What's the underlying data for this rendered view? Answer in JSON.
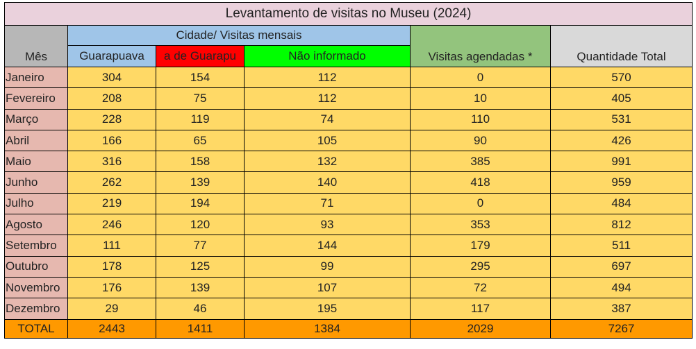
{
  "title": "Levantamento de visitas no Museu (2024)",
  "headers": {
    "mes": "Mês",
    "cidade_group": "Cidade/ Visitas mensais",
    "guarapuava": "Guarapuava",
    "fora": "a de Guarapu",
    "nao_informado": "Não informado",
    "agendadas": "Visitas agendadas *",
    "total": "Quantidade Total"
  },
  "colors": {
    "title_bg": "#ead1dc",
    "month_bg": "#e6b8af",
    "cell_bg": "#ffd966",
    "total_bg": "#ff9900",
    "city_header_bg": "#9fc5e8",
    "outside_header_bg": "#ff0000",
    "not_informed_header_bg": "#00ff00",
    "scheduled_header_bg": "#93c47d",
    "total_header_bg": "#d9d9d9",
    "month_header_bg": "#b7b7b7"
  },
  "rows": [
    {
      "mes": "Janeiro",
      "guarapuava": "304",
      "fora": "154",
      "nao_informado": "112",
      "agendadas": "0",
      "total": "570"
    },
    {
      "mes": "Fevereiro",
      "guarapuava": "208",
      "fora": "75",
      "nao_informado": "112",
      "agendadas": "10",
      "total": "405"
    },
    {
      "mes": "Março",
      "guarapuava": "228",
      "fora": "119",
      "nao_informado": "74",
      "agendadas": "110",
      "total": "531"
    },
    {
      "mes": "Abril",
      "guarapuava": "166",
      "fora": "65",
      "nao_informado": "105",
      "agendadas": "90",
      "total": "426"
    },
    {
      "mes": "Maio",
      "guarapuava": "316",
      "fora": "158",
      "nao_informado": "132",
      "agendadas": "385",
      "total": "991"
    },
    {
      "mes": "Junho",
      "guarapuava": "262",
      "fora": "139",
      "nao_informado": "140",
      "agendadas": "418",
      "total": "959"
    },
    {
      "mes": "Julho",
      "guarapuava": "219",
      "fora": "194",
      "nao_informado": "71",
      "agendadas": "0",
      "total": "484"
    },
    {
      "mes": "Agosto",
      "guarapuava": "246",
      "fora": "120",
      "nao_informado": "93",
      "agendadas": "353",
      "total": "812"
    },
    {
      "mes": "Setembro",
      "guarapuava": "111",
      "fora": "77",
      "nao_informado": "144",
      "agendadas": "179",
      "total": "511"
    },
    {
      "mes": "Outubro",
      "guarapuava": "178",
      "fora": "125",
      "nao_informado": "99",
      "agendadas": "295",
      "total": "697"
    },
    {
      "mes": "Novembro",
      "guarapuava": "176",
      "fora": "139",
      "nao_informado": "107",
      "agendadas": "72",
      "total": "494"
    },
    {
      "mes": "Dezembro",
      "guarapuava": "29",
      "fora": "46",
      "nao_informado": "195",
      "agendadas": "117",
      "total": "387"
    }
  ],
  "totals": {
    "label": "TOTAL",
    "guarapuava": "2443",
    "fora": "1411",
    "nao_informado": "1384",
    "agendadas": "2029",
    "total": "7267"
  }
}
